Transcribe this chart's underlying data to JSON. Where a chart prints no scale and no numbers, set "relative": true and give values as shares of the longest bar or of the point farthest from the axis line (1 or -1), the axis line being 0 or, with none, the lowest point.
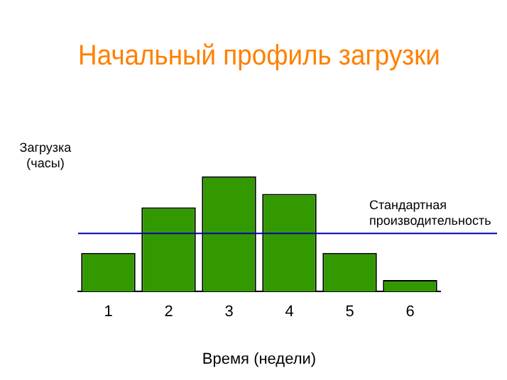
{
  "chart_data": {
    "type": "bar",
    "title": "Начальный профиль загрузки",
    "xlabel": "Время (недели)",
    "ylabel": "Загрузка (часы)",
    "relative": true,
    "categories": [
      "1",
      "2",
      "3",
      "4",
      "5",
      "6"
    ],
    "values": [
      0.335,
      0.73,
      1,
      0.848,
      0.335,
      0.1
    ],
    "color": "#339900",
    "ref_lines": [
      {
        "axis": "y",
        "value": 0.504,
        "label": "Стандартная производительность",
        "color": "#0000aa"
      }
    ],
    "legend": false
  }
}
